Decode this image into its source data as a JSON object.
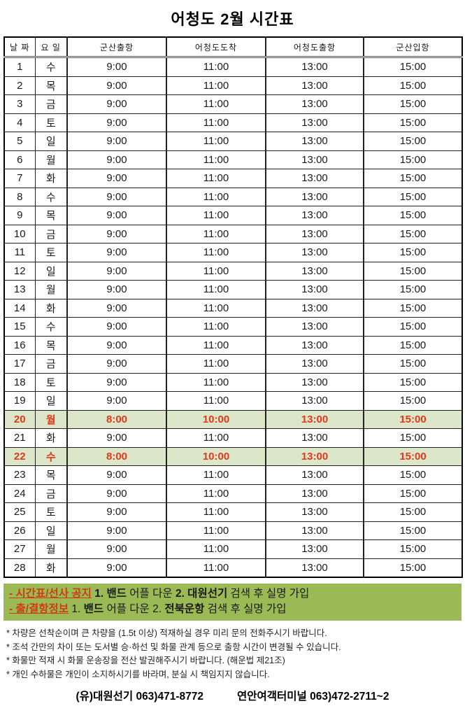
{
  "title": "어청도 2월 시간표",
  "colors": {
    "highlight_bg": "#dce6c8",
    "highlight_text": "#e0391d",
    "banner_bg": "#9bba55",
    "banner_label_text": "#d23a12"
  },
  "table": {
    "headers": [
      "날 짜",
      "요 일",
      "군산출항",
      "어청도도착",
      "어청도출항",
      "군산입항"
    ],
    "rows": [
      {
        "date": "1",
        "day": "수",
        "times": [
          "9:00",
          "11:00",
          "13:00",
          "15:00"
        ],
        "highlight": false
      },
      {
        "date": "2",
        "day": "목",
        "times": [
          "9:00",
          "11:00",
          "13:00",
          "15:00"
        ],
        "highlight": false
      },
      {
        "date": "3",
        "day": "금",
        "times": [
          "9:00",
          "11:00",
          "13:00",
          "15:00"
        ],
        "highlight": false
      },
      {
        "date": "4",
        "day": "토",
        "times": [
          "9:00",
          "11:00",
          "13:00",
          "15:00"
        ],
        "highlight": false
      },
      {
        "date": "5",
        "day": "일",
        "times": [
          "9:00",
          "11:00",
          "13:00",
          "15:00"
        ],
        "highlight": false
      },
      {
        "date": "6",
        "day": "월",
        "times": [
          "9:00",
          "11:00",
          "13:00",
          "15:00"
        ],
        "highlight": false
      },
      {
        "date": "7",
        "day": "화",
        "times": [
          "9:00",
          "11:00",
          "13:00",
          "15:00"
        ],
        "highlight": false
      },
      {
        "date": "8",
        "day": "수",
        "times": [
          "9:00",
          "11:00",
          "13:00",
          "15:00"
        ],
        "highlight": false
      },
      {
        "date": "9",
        "day": "목",
        "times": [
          "9:00",
          "11:00",
          "13:00",
          "15:00"
        ],
        "highlight": false
      },
      {
        "date": "10",
        "day": "금",
        "times": [
          "9:00",
          "11:00",
          "13:00",
          "15:00"
        ],
        "highlight": false
      },
      {
        "date": "11",
        "day": "토",
        "times": [
          "9:00",
          "11:00",
          "13:00",
          "15:00"
        ],
        "highlight": false
      },
      {
        "date": "12",
        "day": "일",
        "times": [
          "9:00",
          "11:00",
          "13:00",
          "15:00"
        ],
        "highlight": false
      },
      {
        "date": "13",
        "day": "월",
        "times": [
          "9:00",
          "11:00",
          "13:00",
          "15:00"
        ],
        "highlight": false
      },
      {
        "date": "14",
        "day": "화",
        "times": [
          "9:00",
          "11:00",
          "13:00",
          "15:00"
        ],
        "highlight": false
      },
      {
        "date": "15",
        "day": "수",
        "times": [
          "9:00",
          "11:00",
          "13:00",
          "15:00"
        ],
        "highlight": false
      },
      {
        "date": "16",
        "day": "목",
        "times": [
          "9:00",
          "11:00",
          "13:00",
          "15:00"
        ],
        "highlight": false
      },
      {
        "date": "17",
        "day": "금",
        "times": [
          "9:00",
          "11:00",
          "13:00",
          "15:00"
        ],
        "highlight": false
      },
      {
        "date": "18",
        "day": "토",
        "times": [
          "9:00",
          "11:00",
          "13:00",
          "15:00"
        ],
        "highlight": false
      },
      {
        "date": "19",
        "day": "일",
        "times": [
          "9:00",
          "11:00",
          "13:00",
          "15:00"
        ],
        "highlight": false
      },
      {
        "date": "20",
        "day": "월",
        "times": [
          "8:00",
          "10:00",
          "13:00",
          "15:00"
        ],
        "highlight": true
      },
      {
        "date": "21",
        "day": "화",
        "times": [
          "9:00",
          "11:00",
          "13:00",
          "15:00"
        ],
        "highlight": false
      },
      {
        "date": "22",
        "day": "수",
        "times": [
          "8:00",
          "10:00",
          "13:00",
          "15:00"
        ],
        "highlight": true
      },
      {
        "date": "23",
        "day": "목",
        "times": [
          "9:00",
          "11:00",
          "13:00",
          "15:00"
        ],
        "highlight": false
      },
      {
        "date": "24",
        "day": "금",
        "times": [
          "9:00",
          "11:00",
          "13:00",
          "15:00"
        ],
        "highlight": false
      },
      {
        "date": "25",
        "day": "토",
        "times": [
          "9:00",
          "11:00",
          "13:00",
          "15:00"
        ],
        "highlight": false
      },
      {
        "date": "26",
        "day": "일",
        "times": [
          "9:00",
          "11:00",
          "13:00",
          "15:00"
        ],
        "highlight": false
      },
      {
        "date": "27",
        "day": "월",
        "times": [
          "9:00",
          "11:00",
          "13:00",
          "15:00"
        ],
        "highlight": false
      },
      {
        "date": "28",
        "day": "화",
        "times": [
          "9:00",
          "11:00",
          "13:00",
          "15:00"
        ],
        "highlight": false
      }
    ]
  },
  "notice_banner": {
    "lines": [
      {
        "segments": [
          {
            "text": "- 시간표/선사 공지",
            "bold": true,
            "red": true,
            "underline": true
          },
          {
            "text": " ",
            "bold": false
          },
          {
            "text": "1. 밴드",
            "bold": true
          },
          {
            "text": " 어플 다운 ",
            "bold": false
          },
          {
            "text": "2. 대원선기",
            "bold": true
          },
          {
            "text": " 검색 후 실명 가입",
            "bold": false
          }
        ]
      },
      {
        "segments": [
          {
            "text": "- 출/결항정보",
            "bold": true,
            "red": true,
            "underline": true
          },
          {
            "text": " 1. ",
            "bold": false
          },
          {
            "text": "밴드",
            "bold": true
          },
          {
            "text": " 어플 다운 2. ",
            "bold": false
          },
          {
            "text": "전북운항",
            "bold": true
          },
          {
            "text": " 검색 후 실명 가입",
            "bold": false
          }
        ]
      }
    ]
  },
  "footnotes": [
    "* 차량은 선착순이며 큰 차량을 (1.5t 이상) 적재하실 경우 미리 문의 전화주시기 바랍니다.",
    "* 조석 간만의 차이 또는 도서별 승·하선 및 화물 관계 등으로 출항 시간이 변경될 수 있습니다.",
    "* 화물만 적재 시 화물 운송장을 전산 발권해주시기 바랍니다. (해운법 제21조)",
    "* 개인 수하물은 개인이 소지하시기를 바라며, 분실 시 책임지지 않습니다."
  ],
  "footer": {
    "company": "(유)대원선기 063)471-8772",
    "terminal": "연안여객터미널 063)472-2711~2"
  }
}
